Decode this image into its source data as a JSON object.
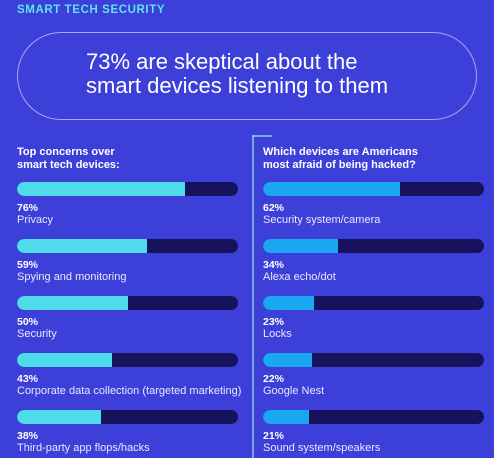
{
  "header": {
    "label": "SMART TECH SECURITY",
    "headline_line1": "73% are skeptical about the",
    "headline_line2": "smart devices listening to them"
  },
  "colors": {
    "background": "#3d3fd9",
    "left_fill": "#4fdcea",
    "right_fill": "#1aa6f0",
    "track": "#16125c",
    "header_accent": "#5fe3ee"
  },
  "chart_data": [
    {
      "type": "bar",
      "orientation": "horizontal",
      "title": "Top concerns over smart tech devices:",
      "title_line1": "Top concerns over",
      "title_line2": "smart tech devices:",
      "xlim": [
        0,
        100
      ],
      "categories": [
        "Privacy",
        "Spying and monitoring",
        "Security",
        "Corporate data collection (targeted marketing)",
        "Third-party app flops/hacks"
      ],
      "values": [
        76,
        59,
        50,
        43,
        38
      ],
      "labels": [
        "76%",
        "59%",
        "50%",
        "43%",
        "38%"
      ]
    },
    {
      "type": "bar",
      "orientation": "horizontal",
      "title": "Which devices are Americans most afraid of being hacked?",
      "title_line1": "Which devices are Americans",
      "title_line2": "most afraid of being hacked?",
      "xlim": [
        0,
        100
      ],
      "categories": [
        "Security system/camera",
        "Alexa echo/dot",
        "Locks",
        "Google Nest",
        "Sound system/speakers"
      ],
      "values": [
        62,
        34,
        23,
        22,
        21
      ],
      "labels": [
        "62%",
        "34%",
        "23%",
        "22%",
        "21%"
      ]
    }
  ]
}
